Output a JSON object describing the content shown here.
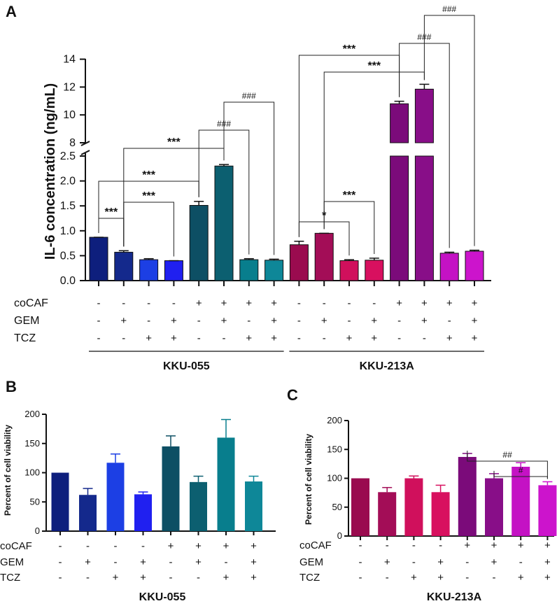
{
  "panels": [
    {
      "id": "A",
      "letter": "A",
      "chart_data": {
        "type": "bar",
        "ylabel": "IL-6 concentration (ng/mL)",
        "y_axis_break": {
          "lower_range": [
            0,
            2.5
          ],
          "upper_range": [
            8,
            14
          ]
        },
        "lower_ticks": [
          "0.0",
          "0.5",
          "1.0",
          "1.5",
          "2.0",
          "2.5"
        ],
        "upper_ticks": [
          "8",
          "10",
          "12",
          "14"
        ],
        "values": [
          0.87,
          0.57,
          0.42,
          0.4,
          1.51,
          2.3,
          0.42,
          0.41,
          0.72,
          0.95,
          0.4,
          0.41,
          10.8,
          11.85,
          0.55,
          0.59
        ],
        "errors": [
          0.0,
          0.03,
          0.02,
          0.0,
          0.08,
          0.03,
          0.02,
          0.02,
          0.07,
          0.0,
          0.02,
          0.04,
          0.18,
          0.35,
          0.02,
          0.02
        ],
        "colors": [
          "#0e1f7d",
          "#14298c",
          "#1c3fe4",
          "#2020f0",
          "#0d4f64",
          "#0c5f70",
          "#087e8d",
          "#0e8798",
          "#9a0b4f",
          "#a30d57",
          "#d0105c",
          "#d8105f",
          "#7b0b7a",
          "#880e88",
          "#c412c4",
          "#cc14cc"
        ],
        "conditions": {
          "coCAF": [
            "-",
            "-",
            "-",
            "-",
            "+",
            "+",
            "+",
            "+",
            "-",
            "-",
            "-",
            "-",
            "+",
            "+",
            "+",
            "+"
          ],
          "GEM": [
            "-",
            "+",
            "-",
            "+",
            "-",
            "+",
            "-",
            "+",
            "-",
            "+",
            "-",
            "+",
            "-",
            "+",
            "-",
            "+"
          ],
          "TCZ": [
            "-",
            "-",
            "+",
            "+",
            "-",
            "-",
            "+",
            "+",
            "-",
            "-",
            "+",
            "+",
            "-",
            "-",
            "+",
            "+"
          ]
        },
        "condition_labels": [
          "coCAF",
          "GEM",
          "TCZ"
        ],
        "groups": [
          {
            "label": "KKU-055",
            "bars": [
              0,
              7
            ]
          },
          {
            "label": "KKU-213A",
            "bars": [
              8,
              15
            ]
          }
        ],
        "comparisons": [
          {
            "from": 0,
            "to": 1,
            "label": "***"
          },
          {
            "from": 1,
            "to": 3,
            "label": "***"
          },
          {
            "from": 0,
            "to": 4,
            "label": "***"
          },
          {
            "from": 1,
            "to": 5,
            "label": "***"
          },
          {
            "from": 4,
            "to": 6,
            "label": "###"
          },
          {
            "from": 5,
            "to": 7,
            "label": "###"
          },
          {
            "from": 8,
            "to": 10,
            "label": "*"
          },
          {
            "from": 9,
            "to": 11,
            "label": "***"
          },
          {
            "from": 8,
            "to": 12,
            "label": "***"
          },
          {
            "from": 9,
            "to": 13,
            "label": "***"
          },
          {
            "from": 12,
            "to": 14,
            "label": "###"
          },
          {
            "from": 13,
            "to": 15,
            "label": "###"
          }
        ]
      }
    },
    {
      "id": "B",
      "letter": "B",
      "chart_data": {
        "type": "bar",
        "title": "KKU-055",
        "ylabel": "Percent of cell viability",
        "ylim": [
          0,
          200
        ],
        "yticks": [
          "0",
          "50",
          "100",
          "150",
          "200"
        ],
        "values": [
          100,
          62,
          117,
          63,
          145,
          84,
          160,
          85
        ],
        "errors": [
          0,
          11,
          15,
          4,
          18,
          10,
          31,
          9
        ],
        "colors": [
          "#0e1f7d",
          "#14298c",
          "#1c3fe4",
          "#2020f0",
          "#0d4f64",
          "#0c5f70",
          "#087e8d",
          "#0e8798"
        ],
        "conditions": {
          "coCAF": [
            "-",
            "-",
            "-",
            "-",
            "+",
            "+",
            "+",
            "+"
          ],
          "GEM": [
            "-",
            "+",
            "-",
            "+",
            "-",
            "+",
            "-",
            "+"
          ],
          "TCZ": [
            "-",
            "-",
            "+",
            "+",
            "-",
            "-",
            "+",
            "+"
          ]
        },
        "condition_labels": [
          "coCAF",
          "GEM",
          "TCZ"
        ],
        "comparisons": []
      }
    },
    {
      "id": "C",
      "letter": "C",
      "chart_data": {
        "type": "bar",
        "title": "KKU-213A",
        "ylabel": "Percent of cell viability",
        "ylim": [
          0,
          200
        ],
        "yticks": [
          "0",
          "50",
          "100",
          "150",
          "200"
        ],
        "values": [
          100,
          76,
          100,
          76,
          137,
          100,
          120,
          88
        ],
        "errors": [
          0,
          8,
          4,
          12,
          6,
          8,
          7,
          6
        ],
        "colors": [
          "#9a0b4f",
          "#a30d57",
          "#d0105c",
          "#d8105f",
          "#7b0b7a",
          "#880e88",
          "#c412c4",
          "#cc14cc"
        ],
        "conditions": {
          "coCAF": [
            "-",
            "-",
            "-",
            "-",
            "+",
            "+",
            "+",
            "+"
          ],
          "GEM": [
            "-",
            "+",
            "-",
            "+",
            "-",
            "+",
            "-",
            "+"
          ],
          "TCZ": [
            "-",
            "-",
            "+",
            "+",
            "-",
            "-",
            "+",
            "+"
          ]
        },
        "condition_labels": [
          "coCAF",
          "GEM",
          "TCZ"
        ],
        "comparisons": [
          {
            "from": 4,
            "to": 7,
            "label": "##"
          },
          {
            "from": 5,
            "to": 7,
            "label": "#"
          }
        ]
      }
    }
  ]
}
